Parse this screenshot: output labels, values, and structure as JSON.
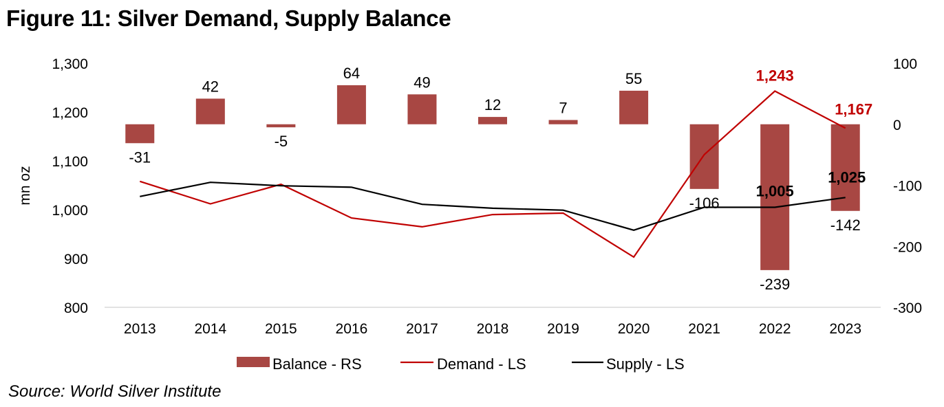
{
  "title": "Figure 11: Silver Demand, Supply Balance",
  "source": "Source: World Silver Institute",
  "chart_data": {
    "type": "bar+line",
    "title": "Figure 11: Silver Demand, Supply Balance",
    "categories": [
      "2013",
      "2014",
      "2015",
      "2016",
      "2017",
      "2018",
      "2019",
      "2020",
      "2021",
      "2022",
      "2023"
    ],
    "ylabel_left": "mn oz",
    "ylim_left": [
      800,
      1300
    ],
    "yticks_left": [
      800,
      900,
      1000,
      1100,
      1200,
      1300
    ],
    "yticks_left_labels": [
      "800",
      "900",
      "1,000",
      "1,100",
      "1,200",
      "1,300"
    ],
    "ylim_right": [
      -300,
      100
    ],
    "yticks_right": [
      -300,
      -200,
      -100,
      0,
      100
    ],
    "yticks_right_labels": [
      "-300",
      "-200",
      "-100",
      "0",
      "100"
    ],
    "grid": false,
    "legend_position": "bottom",
    "series": [
      {
        "name": "Balance - RS",
        "type": "bar",
        "axis": "right",
        "color": "#A84743",
        "values": [
          -31,
          42,
          -5,
          64,
          49,
          12,
          7,
          55,
          -106,
          -239,
          -142
        ],
        "labels": [
          "-31",
          "42",
          "-5",
          "64",
          "49",
          "12",
          "7",
          "55",
          "-106",
          "-239",
          "-142"
        ]
      },
      {
        "name": "Demand - LS",
        "type": "line",
        "axis": "left",
        "color": "#C00000",
        "values": [
          1058,
          1012,
          1052,
          983,
          965,
          990,
          993,
          903,
          1113,
          1243,
          1167
        ],
        "annotations": [
          {
            "index": 9,
            "text": "1,243"
          },
          {
            "index": 10,
            "text": "1,167"
          }
        ]
      },
      {
        "name": "Supply - LS",
        "type": "line",
        "axis": "left",
        "color": "#000000",
        "values": [
          1027,
          1056,
          1049,
          1046,
          1011,
          1003,
          999,
          958,
          1005,
          1005,
          1025
        ],
        "annotations": [
          {
            "index": 9,
            "text": "1,005"
          },
          {
            "index": 10,
            "text": "1,025"
          }
        ]
      }
    ],
    "legend": [
      "Balance - RS",
      "Demand - LS",
      "Supply - LS"
    ]
  }
}
